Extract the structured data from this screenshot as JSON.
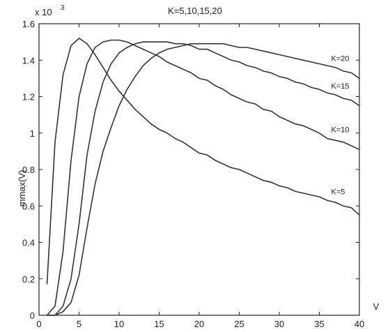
{
  "chart_data": {
    "type": "line",
    "title": "K=5,10,15,20",
    "xlabel": "V",
    "ylabel": "mmax(V)",
    "y_exponent_label": "x 10",
    "y_exponent_power": "3",
    "xlim": [
      0,
      40
    ],
    "ylim": [
      0,
      1.6
    ],
    "x_ticks": [
      0,
      5,
      10,
      15,
      20,
      25,
      30,
      35,
      40
    ],
    "y_ticks": [
      0,
      0.2,
      0.4,
      0.6,
      0.8,
      1,
      1.2,
      1.4,
      1.6
    ],
    "x_tick_labels": [
      "0",
      "5",
      "10",
      "15",
      "20",
      "25",
      "30",
      "35",
      "40"
    ],
    "y_tick_labels": [
      "0",
      "0.2",
      "0.4",
      "0.6",
      "0.8",
      "1",
      "1.2",
      "1.4",
      "1.6"
    ],
    "grid": false,
    "series": [
      {
        "name": "K=5",
        "x": [
          1,
          2,
          3,
          4,
          5,
          6,
          7,
          8,
          9,
          10,
          11,
          12,
          13,
          14,
          15,
          16,
          17,
          18,
          19,
          20,
          21,
          22,
          23,
          24,
          25,
          26,
          27,
          28,
          29,
          30,
          31,
          32,
          33,
          34,
          35,
          36,
          37,
          38,
          39,
          40
        ],
        "y": [
          0.17,
          0.95,
          1.32,
          1.48,
          1.52,
          1.49,
          1.43,
          1.36,
          1.29,
          1.23,
          1.18,
          1.13,
          1.09,
          1.05,
          1.02,
          1.0,
          0.97,
          0.95,
          0.92,
          0.89,
          0.88,
          0.85,
          0.83,
          0.81,
          0.8,
          0.78,
          0.76,
          0.74,
          0.73,
          0.71,
          0.7,
          0.68,
          0.67,
          0.66,
          0.65,
          0.63,
          0.62,
          0.6,
          0.59,
          0.55
        ]
      },
      {
        "name": "K=10",
        "x": [
          1,
          2,
          3,
          4,
          5,
          6,
          7,
          8,
          9,
          10,
          11,
          12,
          13,
          14,
          15,
          16,
          17,
          18,
          19,
          20,
          21,
          22,
          23,
          24,
          25,
          26,
          27,
          28,
          29,
          30,
          31,
          32,
          33,
          34,
          35,
          36,
          37,
          38,
          39,
          40
        ],
        "y": [
          0.0,
          0.05,
          0.35,
          0.85,
          1.2,
          1.38,
          1.47,
          1.5,
          1.51,
          1.51,
          1.5,
          1.48,
          1.46,
          1.44,
          1.42,
          1.39,
          1.37,
          1.35,
          1.33,
          1.3,
          1.29,
          1.26,
          1.24,
          1.21,
          1.19,
          1.17,
          1.16,
          1.13,
          1.12,
          1.09,
          1.07,
          1.05,
          1.04,
          1.02,
          1.0,
          0.97,
          0.96,
          0.95,
          0.93,
          0.91
        ]
      },
      {
        "name": "K=15",
        "x": [
          1,
          2,
          3,
          4,
          5,
          6,
          7,
          8,
          9,
          10,
          11,
          12,
          13,
          14,
          15,
          16,
          17,
          18,
          19,
          20,
          21,
          22,
          23,
          24,
          25,
          26,
          27,
          28,
          29,
          30,
          31,
          32,
          33,
          34,
          35,
          36,
          37,
          38,
          39,
          40
        ],
        "y": [
          0.0,
          0.0,
          0.05,
          0.2,
          0.5,
          0.88,
          1.12,
          1.28,
          1.38,
          1.44,
          1.47,
          1.49,
          1.5,
          1.5,
          1.5,
          1.5,
          1.49,
          1.49,
          1.48,
          1.46,
          1.46,
          1.44,
          1.42,
          1.4,
          1.39,
          1.37,
          1.36,
          1.34,
          1.33,
          1.31,
          1.3,
          1.28,
          1.27,
          1.25,
          1.24,
          1.22,
          1.21,
          1.19,
          1.18,
          1.15
        ]
      },
      {
        "name": "K=20",
        "x": [
          1,
          2,
          3,
          4,
          5,
          6,
          7,
          8,
          9,
          10,
          11,
          12,
          13,
          14,
          15,
          16,
          17,
          18,
          19,
          20,
          21,
          22,
          23,
          24,
          25,
          26,
          27,
          28,
          29,
          30,
          31,
          32,
          33,
          34,
          35,
          36,
          37,
          38,
          39,
          40
        ],
        "y": [
          0.0,
          0.0,
          0.02,
          0.07,
          0.22,
          0.48,
          0.72,
          0.9,
          1.03,
          1.15,
          1.24,
          1.31,
          1.37,
          1.41,
          1.44,
          1.46,
          1.47,
          1.48,
          1.49,
          1.49,
          1.49,
          1.49,
          1.49,
          1.48,
          1.47,
          1.47,
          1.46,
          1.45,
          1.44,
          1.43,
          1.42,
          1.41,
          1.4,
          1.39,
          1.38,
          1.37,
          1.36,
          1.34,
          1.33,
          1.3
        ]
      }
    ],
    "series_label_positions": [
      {
        "name": "K=5",
        "x": 37.0,
        "y": 0.68
      },
      {
        "name": "K=10",
        "x": 37.0,
        "y": 1.02
      },
      {
        "name": "K=15",
        "x": 37.0,
        "y": 1.26
      },
      {
        "name": "K=20",
        "x": 37.0,
        "y": 1.41
      }
    ]
  }
}
